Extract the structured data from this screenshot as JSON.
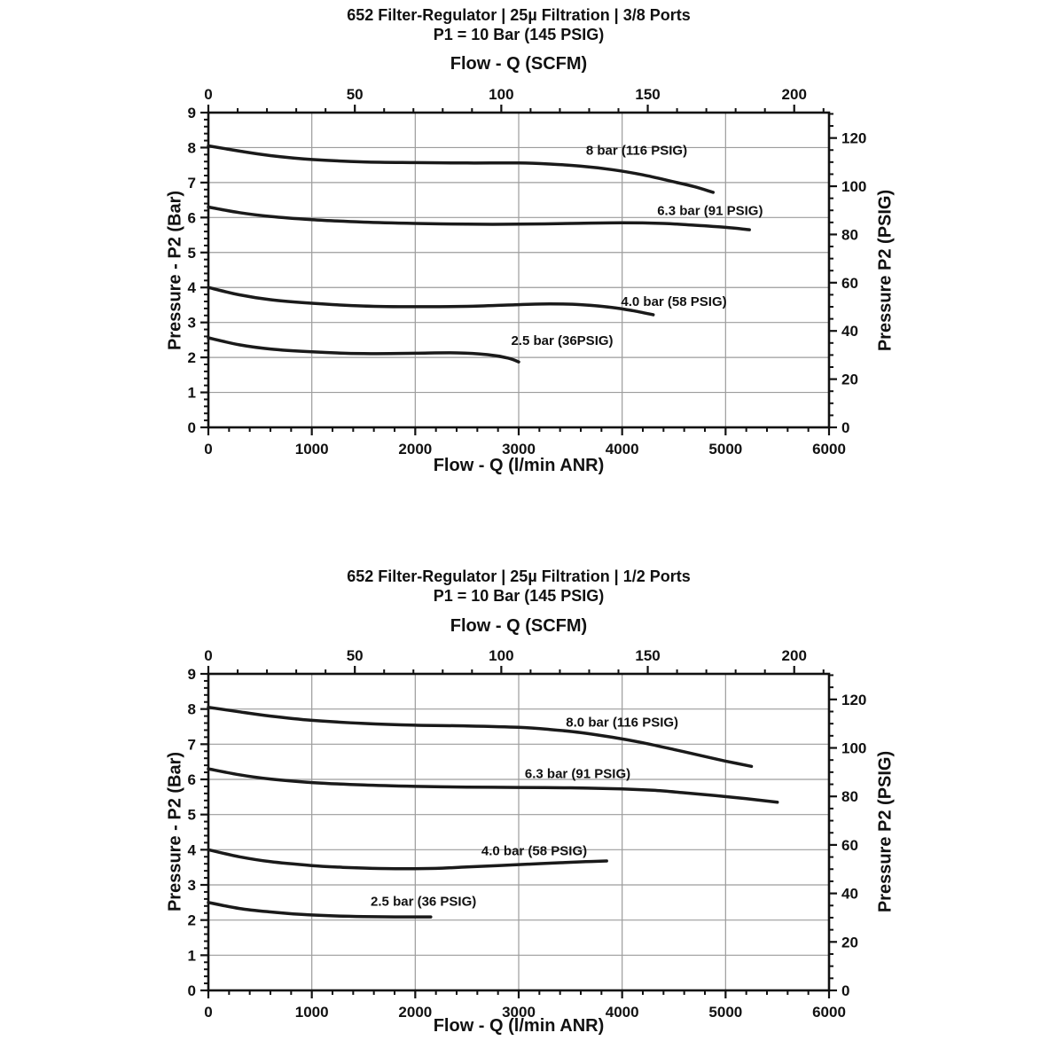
{
  "colors": {
    "curve": "#1a1a1a",
    "grid": "#9c9c9c",
    "frame": "#111111",
    "text": "#111111",
    "background": "#ffffff"
  },
  "chart_data": [
    {
      "type": "line",
      "title": "652 Filter-Regulator | 25µ Filtration | 3/8 Ports",
      "subtitle": "P1 = 10 Bar (145 PSIG)",
      "x_bottom": {
        "label": "Flow - Q (l/min ANR)",
        "range": [
          0,
          6000
        ],
        "ticks": [
          0,
          1000,
          2000,
          3000,
          4000,
          5000,
          6000
        ],
        "minor_step": 200
      },
      "x_top": {
        "label": "Flow - Q (SCFM)",
        "ticks": [
          0,
          50,
          100,
          150,
          200
        ],
        "minor_step": 10,
        "lmin_per_scfm": 28.317
      },
      "y_left": {
        "label": "Pressure - P2 (Bar)",
        "range": [
          0,
          9
        ],
        "ticks": [
          0,
          1,
          2,
          3,
          4,
          5,
          6,
          7,
          8,
          9
        ],
        "minor_step": 0.2
      },
      "y_right": {
        "label": "Pressure P2 (PSIG)",
        "ticks": [
          0,
          20,
          40,
          60,
          80,
          100,
          120
        ],
        "minor_step": 5,
        "psig_per_bar": 14.504
      },
      "grid": {
        "h_lines_bar": [
          1,
          2,
          3,
          4,
          5,
          6,
          7,
          8
        ],
        "v_lines_lmin": [
          1000,
          2000,
          3000,
          4000,
          5000
        ]
      },
      "series": [
        {
          "name": "8 bar (116 PSIG)",
          "label_at": [
            4140,
            7.92
          ],
          "points": [
            [
              0,
              8.05
            ],
            [
              300,
              7.9
            ],
            [
              600,
              7.77
            ],
            [
              1000,
              7.66
            ],
            [
              1500,
              7.59
            ],
            [
              2000,
              7.57
            ],
            [
              2500,
              7.56
            ],
            [
              3000,
              7.56
            ],
            [
              3300,
              7.53
            ],
            [
              3600,
              7.47
            ],
            [
              3900,
              7.37
            ],
            [
              4200,
              7.22
            ],
            [
              4500,
              7.02
            ],
            [
              4700,
              6.88
            ],
            [
              4880,
              6.72
            ]
          ]
        },
        {
          "name": "6.3 bar (91 PSIG)",
          "label_at": [
            4850,
            6.2
          ],
          "points": [
            [
              0,
              6.3
            ],
            [
              300,
              6.14
            ],
            [
              600,
              6.03
            ],
            [
              1000,
              5.94
            ],
            [
              1500,
              5.87
            ],
            [
              2000,
              5.83
            ],
            [
              2500,
              5.81
            ],
            [
              3000,
              5.81
            ],
            [
              3500,
              5.83
            ],
            [
              4000,
              5.85
            ],
            [
              4400,
              5.83
            ],
            [
              4700,
              5.78
            ],
            [
              5000,
              5.72
            ],
            [
              5230,
              5.65
            ]
          ]
        },
        {
          "name": "4.0 bar (58 PSIG)",
          "label_at": [
            4500,
            3.6
          ],
          "points": [
            [
              0,
              4.0
            ],
            [
              300,
              3.79
            ],
            [
              600,
              3.65
            ],
            [
              1000,
              3.55
            ],
            [
              1500,
              3.47
            ],
            [
              2000,
              3.45
            ],
            [
              2500,
              3.46
            ],
            [
              3000,
              3.51
            ],
            [
              3300,
              3.53
            ],
            [
              3600,
              3.51
            ],
            [
              3900,
              3.43
            ],
            [
              4100,
              3.34
            ],
            [
              4300,
              3.22
            ]
          ]
        },
        {
          "name": "2.5 bar (36PSIG)",
          "label_at": [
            3420,
            2.48
          ],
          "points": [
            [
              0,
              2.56
            ],
            [
              300,
              2.36
            ],
            [
              600,
              2.24
            ],
            [
              1000,
              2.16
            ],
            [
              1500,
              2.11
            ],
            [
              2000,
              2.12
            ],
            [
              2400,
              2.13
            ],
            [
              2700,
              2.08
            ],
            [
              2900,
              1.98
            ],
            [
              3000,
              1.87
            ]
          ]
        }
      ]
    },
    {
      "type": "line",
      "title": "652 Filter-Regulator | 25µ Filtration | 1/2 Ports",
      "subtitle": "P1 = 10 Bar (145 PSIG)",
      "x_bottom": {
        "label": "Flow - Q (l/min ANR)",
        "range": [
          0,
          6000
        ],
        "ticks": [
          0,
          1000,
          2000,
          3000,
          4000,
          5000,
          6000
        ],
        "minor_step": 200
      },
      "x_top": {
        "label": "Flow - Q (SCFM)",
        "ticks": [
          0,
          50,
          100,
          150,
          200
        ],
        "minor_step": 10,
        "lmin_per_scfm": 28.317
      },
      "y_left": {
        "label": "Pressure - P2 (Bar)",
        "range": [
          0,
          9
        ],
        "ticks": [
          0,
          1,
          2,
          3,
          4,
          5,
          6,
          7,
          8,
          9
        ],
        "minor_step": 0.2
      },
      "y_right": {
        "label": "Pressure P2 (PSIG)",
        "ticks": [
          0,
          20,
          40,
          60,
          80,
          100,
          120
        ],
        "minor_step": 5,
        "psig_per_bar": 14.504
      },
      "grid": {
        "h_lines_bar": [
          1,
          2,
          3,
          4,
          5,
          6,
          7,
          8
        ],
        "v_lines_lmin": [
          1000,
          2000,
          3000,
          4000,
          5000
        ]
      },
      "series": [
        {
          "name": "8.0 bar (116 PSIG)",
          "label_at": [
            4000,
            7.62
          ],
          "points": [
            [
              0,
              8.05
            ],
            [
              300,
              7.92
            ],
            [
              600,
              7.8
            ],
            [
              1000,
              7.68
            ],
            [
              1500,
              7.59
            ],
            [
              2000,
              7.54
            ],
            [
              2500,
              7.52
            ],
            [
              3000,
              7.48
            ],
            [
              3300,
              7.42
            ],
            [
              3600,
              7.33
            ],
            [
              3900,
              7.2
            ],
            [
              4200,
              7.04
            ],
            [
              4500,
              6.85
            ],
            [
              4800,
              6.65
            ],
            [
              5000,
              6.52
            ],
            [
              5250,
              6.37
            ]
          ]
        },
        {
          "name": "6.3 bar (91 PSIG)",
          "label_at": [
            3570,
            6.17
          ],
          "points": [
            [
              0,
              6.3
            ],
            [
              300,
              6.13
            ],
            [
              600,
              6.01
            ],
            [
              1000,
              5.91
            ],
            [
              1500,
              5.84
            ],
            [
              2000,
              5.8
            ],
            [
              2500,
              5.78
            ],
            [
              3000,
              5.77
            ],
            [
              3500,
              5.76
            ],
            [
              4000,
              5.73
            ],
            [
              4300,
              5.69
            ],
            [
              4600,
              5.62
            ],
            [
              4900,
              5.54
            ],
            [
              5200,
              5.45
            ],
            [
              5500,
              5.35
            ]
          ]
        },
        {
          "name": "4.0 bar (58 PSIG)",
          "label_at": [
            3150,
            3.97
          ],
          "points": [
            [
              0,
              4.0
            ],
            [
              300,
              3.8
            ],
            [
              600,
              3.66
            ],
            [
              1000,
              3.55
            ],
            [
              1300,
              3.5
            ],
            [
              1600,
              3.47
            ],
            [
              1900,
              3.46
            ],
            [
              2200,
              3.47
            ],
            [
              2500,
              3.51
            ],
            [
              2800,
              3.55
            ],
            [
              3100,
              3.59
            ],
            [
              3400,
              3.63
            ],
            [
              3650,
              3.66
            ],
            [
              3850,
              3.68
            ]
          ]
        },
        {
          "name": "2.5 bar (36 PSIG)",
          "label_at": [
            2080,
            2.53
          ],
          "points": [
            [
              0,
              2.5
            ],
            [
              300,
              2.33
            ],
            [
              600,
              2.23
            ],
            [
              900,
              2.16
            ],
            [
              1200,
              2.12
            ],
            [
              1500,
              2.1
            ],
            [
              1800,
              2.09
            ],
            [
              2000,
              2.09
            ],
            [
              2150,
              2.09
            ]
          ]
        }
      ]
    }
  ]
}
